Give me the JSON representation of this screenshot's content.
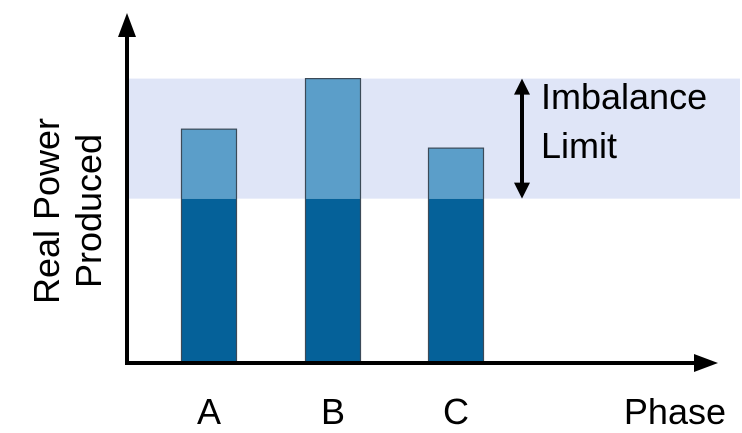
{
  "chart_data": {
    "type": "bar",
    "categories": [
      "A",
      "B",
      "C"
    ],
    "values": [
      0.74,
      0.9,
      0.68
    ],
    "band": {
      "low": 0.52,
      "high": 0.9,
      "label_lines": [
        "Imbalance",
        "Limit"
      ]
    },
    "xlabel": "Phase",
    "ylabel_lines": [
      "Real Power",
      "Produced"
    ],
    "ylim": [
      0,
      1
    ],
    "grid": false,
    "legend": "none",
    "colors": {
      "bar_base": "#056199",
      "bar_in_band": "#5b9ec9",
      "band": "#dfe5f7",
      "bar_outline": "#3c4a58",
      "axis": "#000000"
    }
  }
}
